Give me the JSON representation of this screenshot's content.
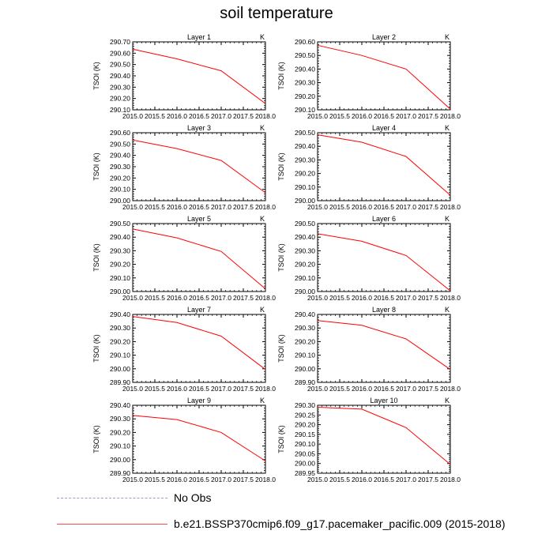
{
  "title": "soil temperature",
  "colors": {
    "model": "#ff0000",
    "obs": "#9a9ae0"
  },
  "legend": {
    "obs_label": "No Obs",
    "model_label": "b.e21.BSSP370cmip6.f09_g17.pacemaker_pacific.009 (2015-2018)"
  },
  "chart_data": [
    {
      "type": "line",
      "title": "Layer 1",
      "unit": "K",
      "ylabel": "TSOI  (K)",
      "xlim": [
        2015.0,
        2018.0
      ],
      "xticks": [
        "2015.0",
        "2015.5",
        "2016.0",
        "2016.5",
        "2017.0",
        "2017.5",
        "2018.0"
      ],
      "ylim": [
        290.1,
        290.7
      ],
      "yticks": [
        "290.10",
        "290.20",
        "290.30",
        "290.40",
        "290.50",
        "290.60",
        "290.70"
      ],
      "x": [
        2015,
        2016,
        2017,
        2018
      ],
      "values": [
        290.635,
        290.55,
        290.445,
        290.155
      ]
    },
    {
      "type": "line",
      "title": "Layer 2",
      "unit": "K",
      "ylabel": "TSOI  (K)",
      "xlim": [
        2015.0,
        2018.0
      ],
      "xticks": [
        "2015.0",
        "2015.5",
        "2016.0",
        "2016.5",
        "2017.0",
        "2017.5",
        "2018.0"
      ],
      "ylim": [
        290.1,
        290.6
      ],
      "yticks": [
        "290.10",
        "290.20",
        "290.30",
        "290.40",
        "290.50",
        "290.60"
      ],
      "x": [
        2015,
        2016,
        2017,
        2018
      ],
      "values": [
        290.575,
        290.5,
        290.4,
        290.105
      ]
    },
    {
      "type": "line",
      "title": "Layer 3",
      "unit": "K",
      "ylabel": "TSOI  (K)",
      "xlim": [
        2015.0,
        2018.0
      ],
      "xticks": [
        "2015.0",
        "2015.5",
        "2016.0",
        "2016.5",
        "2017.0",
        "2017.5",
        "2018.0"
      ],
      "ylim": [
        290.0,
        290.6
      ],
      "yticks": [
        "290.00",
        "290.10",
        "290.20",
        "290.30",
        "290.40",
        "290.50",
        "290.60"
      ],
      "x": [
        2015,
        2016,
        2017,
        2018
      ],
      "values": [
        290.535,
        290.46,
        290.355,
        290.07
      ]
    },
    {
      "type": "line",
      "title": "Layer 4",
      "unit": "K",
      "ylabel": "TSOI  (K)",
      "xlim": [
        2015.0,
        2018.0
      ],
      "xticks": [
        "2015.0",
        "2015.5",
        "2016.0",
        "2016.5",
        "2017.0",
        "2017.5",
        "2018.0"
      ],
      "ylim": [
        290.0,
        290.5
      ],
      "yticks": [
        "290.00",
        "290.10",
        "290.20",
        "290.30",
        "290.40",
        "290.50"
      ],
      "x": [
        2015,
        2016,
        2017,
        2018
      ],
      "values": [
        290.485,
        290.43,
        290.325,
        290.04
      ]
    },
    {
      "type": "line",
      "title": "Layer 5",
      "unit": "K",
      "ylabel": "TSOI  (K)",
      "xlim": [
        2015.0,
        2018.0
      ],
      "xticks": [
        "2015.0",
        "2015.5",
        "2016.0",
        "2016.5",
        "2017.0",
        "2017.5",
        "2018.0"
      ],
      "ylim": [
        290.0,
        290.5
      ],
      "yticks": [
        "290.00",
        "290.10",
        "290.20",
        "290.30",
        "290.40",
        "290.50"
      ],
      "x": [
        2015,
        2016,
        2017,
        2018
      ],
      "values": [
        290.46,
        290.395,
        290.295,
        290.02
      ]
    },
    {
      "type": "line",
      "title": "Layer 6",
      "unit": "K",
      "ylabel": "TSOI  (K)",
      "xlim": [
        2015.0,
        2018.0
      ],
      "xticks": [
        "2015.0",
        "2015.5",
        "2016.0",
        "2016.5",
        "2017.0",
        "2017.5",
        "2018.0"
      ],
      "ylim": [
        290.0,
        290.5
      ],
      "yticks": [
        "290.00",
        "290.10",
        "290.20",
        "290.30",
        "290.40",
        "290.50"
      ],
      "x": [
        2015,
        2016,
        2017,
        2018
      ],
      "values": [
        290.425,
        290.37,
        290.265,
        290.005
      ]
    },
    {
      "type": "line",
      "title": "Layer 7",
      "unit": "K",
      "ylabel": "TSOI  (K)",
      "xlim": [
        2015.0,
        2018.0
      ],
      "xticks": [
        "2015.0",
        "2015.5",
        "2016.0",
        "2016.5",
        "2017.0",
        "2017.5",
        "2018.0"
      ],
      "ylim": [
        289.9,
        290.4
      ],
      "yticks": [
        "289.90",
        "290.00",
        "290.10",
        "290.20",
        "290.30",
        "290.40"
      ],
      "x": [
        2015,
        2016,
        2017,
        2018
      ],
      "values": [
        290.385,
        290.34,
        290.24,
        289.995
      ]
    },
    {
      "type": "line",
      "title": "Layer 8",
      "unit": "K",
      "ylabel": "TSOI  (K)",
      "xlim": [
        2015.0,
        2018.0
      ],
      "xticks": [
        "2015.0",
        "2015.5",
        "2016.0",
        "2016.5",
        "2017.0",
        "2017.5",
        "2018.0"
      ],
      "ylim": [
        289.9,
        290.4
      ],
      "yticks": [
        "289.90",
        "290.00",
        "290.10",
        "290.20",
        "290.30",
        "290.40"
      ],
      "x": [
        2015,
        2016,
        2017,
        2018
      ],
      "values": [
        290.355,
        290.32,
        290.22,
        289.995
      ]
    },
    {
      "type": "line",
      "title": "Layer 9",
      "unit": "K",
      "ylabel": "TSOI  (K)",
      "xlim": [
        2015.0,
        2018.0
      ],
      "xticks": [
        "2015.0",
        "2015.5",
        "2016.0",
        "2016.5",
        "2017.0",
        "2017.5",
        "2018.0"
      ],
      "ylim": [
        289.9,
        290.4
      ],
      "yticks": [
        "289.90",
        "290.00",
        "290.10",
        "290.20",
        "290.30",
        "290.40"
      ],
      "x": [
        2015,
        2016,
        2017,
        2018
      ],
      "values": [
        290.325,
        290.295,
        290.2,
        289.99
      ]
    },
    {
      "type": "line",
      "title": "Layer 10",
      "unit": "K",
      "ylabel": "TSOI  (K)",
      "xlim": [
        2015.0,
        2018.0
      ],
      "xticks": [
        "2015.0",
        "2015.5",
        "2016.0",
        "2016.5",
        "2017.0",
        "2017.5",
        "2018.0"
      ],
      "ylim": [
        289.95,
        290.3
      ],
      "yticks": [
        "289.95",
        "290.00",
        "290.05",
        "290.10",
        "290.15",
        "290.20",
        "290.25",
        "290.30"
      ],
      "x": [
        2015,
        2016,
        2017,
        2018
      ],
      "values": [
        290.29,
        290.28,
        290.185,
        289.995
      ]
    }
  ]
}
